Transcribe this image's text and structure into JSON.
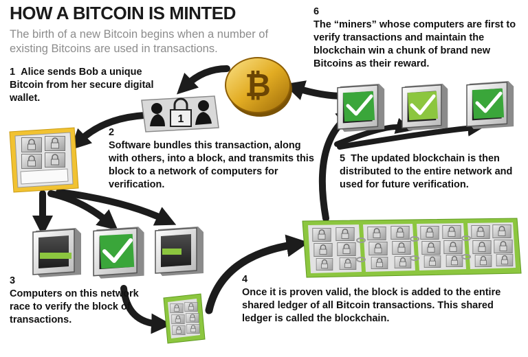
{
  "title": "HOW A BITCOIN IS MINTED",
  "subtitle": "The birth of a new Bitcoin begins when a number of existing Bitcoins are used in transactions.",
  "steps": [
    {
      "num": "1",
      "text": "Alice sends Bob a unique Bitcoin from her secure digital wallet."
    },
    {
      "num": "2",
      "text": "Software bundles this transaction, along with others, into a block, and transmits this block to a network of computers for verification."
    },
    {
      "num": "3",
      "text": "Computers on this network race to verify the block of transactions."
    },
    {
      "num": "4",
      "text": "Once it is proven valid, the block is added to the entire shared ledger of all Bitcoin transactions. This shared ledger is called the blockchain."
    },
    {
      "num": "5",
      "text": "The updated blockchain is then distributed to the entire network and used for future verification."
    },
    {
      "num": "6",
      "text": "The “miners” whose computers are first to verify transactions and maintain the blockchain win a chunk of brand new Bitcoins as their reward."
    }
  ],
  "lock_digit": "1",
  "colors": {
    "green": "#8cc63f",
    "check_green": "#3aa63a",
    "gold": "#d9a520",
    "wallet_yellow": "#f1c232",
    "arrow": "#1c1c1c"
  },
  "icons": [
    "bitcoin-coin-icon",
    "alice-bob-lock-icon",
    "wallet-icon",
    "computer-icon",
    "checkmark-icon",
    "block-icon",
    "blockchain-icon"
  ]
}
